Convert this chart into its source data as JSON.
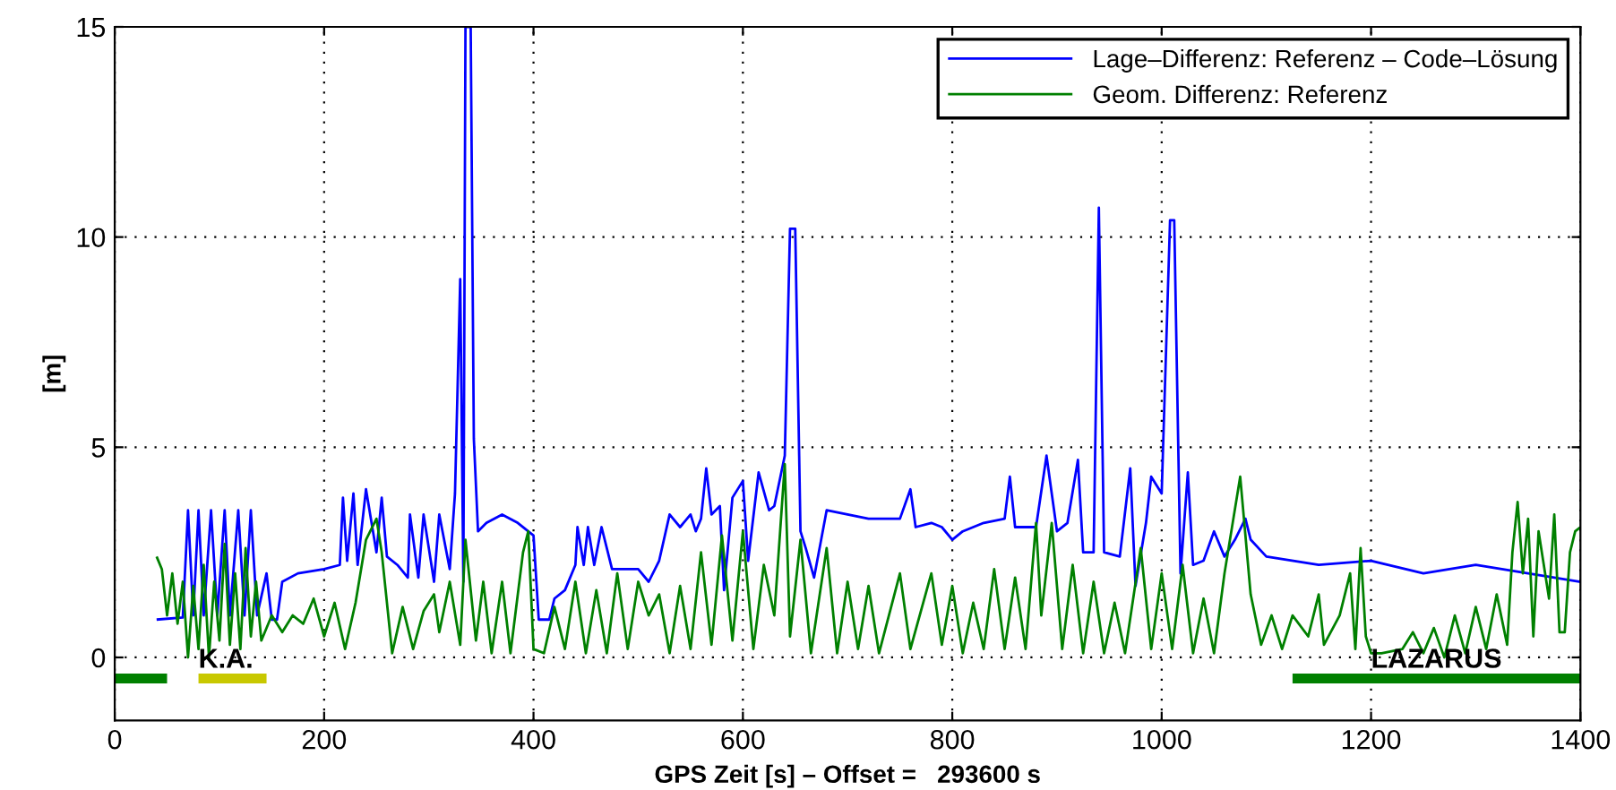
{
  "chart_data": {
    "type": "line",
    "xlabel": "GPS Zeit [s] – Offset =   293600 s",
    "ylabel": "[m]",
    "xlim": [
      0,
      1400
    ],
    "xticks": [
      0,
      200,
      400,
      600,
      800,
      1000,
      1200,
      1400
    ],
    "ylim": [
      -1.5,
      15
    ],
    "yticks": [
      0,
      5,
      10,
      15
    ],
    "grid": true,
    "legend": "top right",
    "line_style": "solid",
    "marker": "none",
    "series": [
      {
        "name": "Lage–Differenz: Referenz – Code–Lösung",
        "color": "#0000ff",
        "x": [
          40,
          65,
          70,
          75,
          80,
          85,
          92,
          98,
          105,
          110,
          118,
          124,
          130,
          136,
          145,
          150,
          155,
          160,
          175,
          200,
          215,
          218,
          222,
          228,
          232,
          240,
          250,
          255,
          260,
          270,
          280,
          282,
          290,
          295,
          305,
          310,
          320,
          325,
          330,
          333,
          335,
          340,
          343,
          347,
          355,
          370,
          385,
          400,
          405,
          415,
          420,
          430,
          440,
          442,
          448,
          452,
          458,
          465,
          475,
          500,
          510,
          520,
          530,
          540,
          550,
          555,
          560,
          565,
          570,
          578,
          582,
          590,
          600,
          605,
          615,
          625,
          630,
          640,
          645,
          650,
          655,
          660,
          668,
          680,
          700,
          720,
          750,
          760,
          765,
          780,
          790,
          800,
          810,
          830,
          850,
          855,
          860,
          880,
          890,
          900,
          910,
          920,
          925,
          935,
          940,
          945,
          960,
          970,
          975,
          985,
          990,
          1000,
          1008,
          1012,
          1018,
          1025,
          1030,
          1040,
          1050,
          1060,
          1070,
          1080,
          1085,
          1100,
          1150,
          1200,
          1250,
          1300,
          1350,
          1400
        ],
        "values": [
          0.9,
          0.95,
          3.5,
          1.0,
          3.5,
          1.0,
          3.5,
          1.0,
          3.5,
          1.0,
          3.5,
          1.0,
          3.5,
          1.0,
          2.0,
          0.9,
          0.9,
          1.8,
          2.0,
          2.1,
          2.2,
          3.8,
          2.3,
          3.9,
          2.2,
          4.0,
          2.5,
          3.8,
          2.4,
          2.2,
          1.9,
          3.4,
          1.9,
          3.4,
          1.8,
          3.4,
          2.1,
          3.9,
          9.0,
          1.8,
          15,
          15,
          5.2,
          3.0,
          3.2,
          3.4,
          3.2,
          2.9,
          0.9,
          0.9,
          1.4,
          1.6,
          2.2,
          3.1,
          2.2,
          3.1,
          2.2,
          3.1,
          2.1,
          2.1,
          1.8,
          2.3,
          3.4,
          3.1,
          3.4,
          3.0,
          3.3,
          4.5,
          3.4,
          3.6,
          1.6,
          3.8,
          4.2,
          2.3,
          4.4,
          3.5,
          3.6,
          4.8,
          10.2,
          10.2,
          3.0,
          2.6,
          1.9,
          3.5,
          3.4,
          3.3,
          3.3,
          4.0,
          3.1,
          3.2,
          3.1,
          2.8,
          3.0,
          3.2,
          3.3,
          4.3,
          3.1,
          3.1,
          4.8,
          3.0,
          3.2,
          4.7,
          2.5,
          2.5,
          10.7,
          2.5,
          2.4,
          4.5,
          1.7,
          3.2,
          4.3,
          3.9,
          10.4,
          10.4,
          2.0,
          4.4,
          2.2,
          2.3,
          3.0,
          2.4,
          2.8,
          3.3,
          2.8,
          2.4,
          2.2,
          2.3,
          2.0,
          2.2,
          2.0,
          1.8
        ]
      },
      {
        "name": "Geom. Differenz: Referenz",
        "color": "#008000",
        "x": [
          40,
          45,
          50,
          55,
          60,
          65,
          70,
          75,
          80,
          85,
          90,
          95,
          100,
          105,
          110,
          115,
          120,
          125,
          130,
          135,
          140,
          150,
          160,
          170,
          180,
          190,
          200,
          210,
          220,
          230,
          240,
          250,
          255,
          265,
          275,
          285,
          295,
          305,
          310,
          320,
          330,
          335,
          345,
          352,
          360,
          370,
          378,
          390,
          395,
          400,
          410,
          420,
          430,
          440,
          450,
          460,
          470,
          480,
          490,
          500,
          510,
          520,
          530,
          540,
          550,
          560,
          570,
          580,
          590,
          600,
          610,
          620,
          630,
          640,
          645,
          655,
          665,
          680,
          690,
          700,
          710,
          720,
          730,
          750,
          760,
          780,
          790,
          800,
          810,
          820,
          830,
          840,
          850,
          860,
          870,
          880,
          885,
          895,
          905,
          915,
          925,
          935,
          945,
          955,
          965,
          980,
          990,
          1000,
          1010,
          1020,
          1030,
          1040,
          1050,
          1060,
          1075,
          1085,
          1095,
          1105,
          1115,
          1125,
          1140,
          1150,
          1155,
          1170,
          1180,
          1185,
          1190,
          1195,
          1200,
          1210,
          1230,
          1240,
          1250,
          1260,
          1270,
          1280,
          1290,
          1300,
          1310,
          1320,
          1330,
          1335,
          1340,
          1345,
          1350,
          1355,
          1360,
          1370,
          1375,
          1380,
          1385,
          1390,
          1395,
          1400
        ],
        "values": [
          2.4,
          2.1,
          1.0,
          2.0,
          0.8,
          1.8,
          0.0,
          1.7,
          0.2,
          2.2,
          0.0,
          1.8,
          0.4,
          2.7,
          0.3,
          2.0,
          0.2,
          2.6,
          0.5,
          1.8,
          0.4,
          1.0,
          0.6,
          1.0,
          0.8,
          1.4,
          0.5,
          1.3,
          0.2,
          1.3,
          2.8,
          3.3,
          2.5,
          0.1,
          1.2,
          0.2,
          1.1,
          1.5,
          0.6,
          1.8,
          0.3,
          2.8,
          0.4,
          1.8,
          0.1,
          1.8,
          0.1,
          2.5,
          3.0,
          0.2,
          0.1,
          1.2,
          0.2,
          1.8,
          0.1,
          1.6,
          0.1,
          2.0,
          0.2,
          1.8,
          1.0,
          1.5,
          0.1,
          1.7,
          0.2,
          2.5,
          0.3,
          2.9,
          0.4,
          3.0,
          0.2,
          2.2,
          1.0,
          4.6,
          0.5,
          2.8,
          0.1,
          2.6,
          0.1,
          1.8,
          0.2,
          1.7,
          0.1,
          2.0,
          0.2,
          2.0,
          0.3,
          1.7,
          0.1,
          1.3,
          0.2,
          2.1,
          0.2,
          1.9,
          0.2,
          3.2,
          1.0,
          3.2,
          0.2,
          2.2,
          0.1,
          1.8,
          0.1,
          1.3,
          0.1,
          2.6,
          0.2,
          2.0,
          0.2,
          2.2,
          0.1,
          1.4,
          0.1,
          2.0,
          4.3,
          1.5,
          0.3,
          1.0,
          0.2,
          1.0,
          0.5,
          1.5,
          0.3,
          1.0,
          2.0,
          0.2,
          2.6,
          0.5,
          0.1,
          0.1,
          0.2,
          0.6,
          0.1,
          0.7,
          0.0,
          1.0,
          0.1,
          1.2,
          0.2,
          1.5,
          0.3,
          2.5,
          3.7,
          2.0,
          3.3,
          0.5,
          3.0,
          1.4,
          3.4,
          0.6,
          0.6,
          2.5,
          3.0,
          3.1
        ]
      },
      {
        "color": "#008000",
        "x": [
          0,
          50
        ],
        "values": [
          -0.5,
          -0.5
        ]
      },
      {
        "color": "#c8c800",
        "x": [
          80,
          145
        ],
        "values": [
          -0.5,
          -0.5
        ]
      },
      {
        "color": "#008000",
        "x": [
          1125,
          1400
        ],
        "values": [
          -0.5,
          -0.5
        ]
      }
    ],
    "annotations": [
      {
        "text": "K.A.",
        "x": 80,
        "y": -0.5
      },
      {
        "text": "LAZARUS",
        "x": 1200,
        "y": -0.5
      }
    ]
  }
}
